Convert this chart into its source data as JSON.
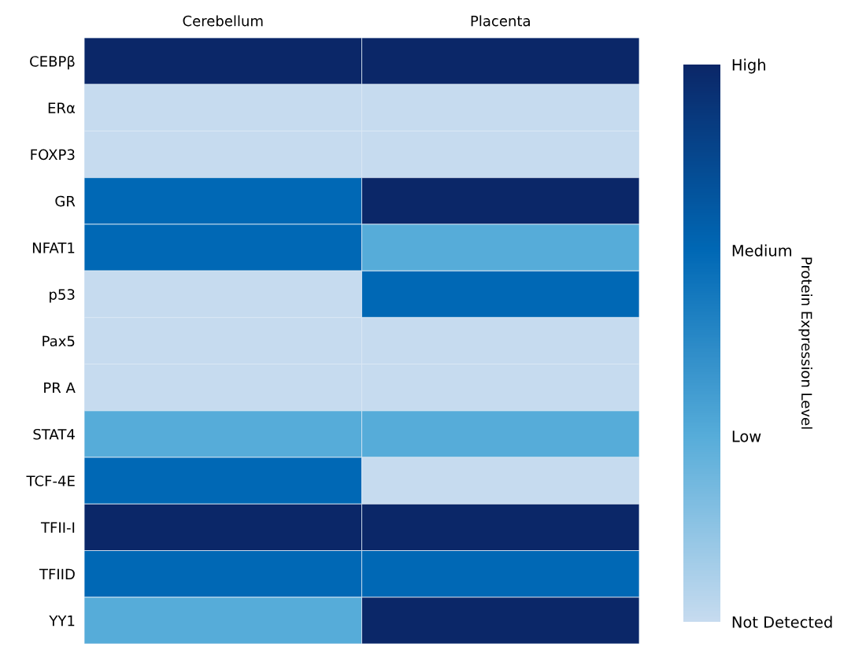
{
  "chart_data": {
    "type": "heatmap",
    "categories": [
      "Cerebellum",
      "Placenta"
    ],
    "y_categories": [
      "CEBPβ",
      "ERα",
      "FOXP3",
      "GR",
      "NFAT1",
      "p53",
      "Pax5",
      "PR A",
      "STAT4",
      "TCF-4E",
      "TFII-I",
      "TFIID",
      "YY1"
    ],
    "cells": [
      [
        3,
        3
      ],
      [
        0,
        0
      ],
      [
        0,
        0
      ],
      [
        2,
        3
      ],
      [
        2,
        1
      ],
      [
        0,
        2
      ],
      [
        0,
        0
      ],
      [
        0,
        0
      ],
      [
        1,
        1
      ],
      [
        2,
        0
      ],
      [
        3,
        3
      ],
      [
        2,
        2
      ],
      [
        1,
        3
      ]
    ],
    "colors": [
      "#c6dbef",
      "#56acd9",
      "#0068b5",
      "#0b2768"
    ],
    "clim": [
      0,
      3
    ],
    "cticks": [
      {
        "value": 0,
        "label": "Not Detected"
      },
      {
        "value": 1,
        "label": "Low"
      },
      {
        "value": 2,
        "label": "Medium"
      },
      {
        "value": 3,
        "label": "High"
      }
    ],
    "clabel": "Protein Expression Level"
  }
}
